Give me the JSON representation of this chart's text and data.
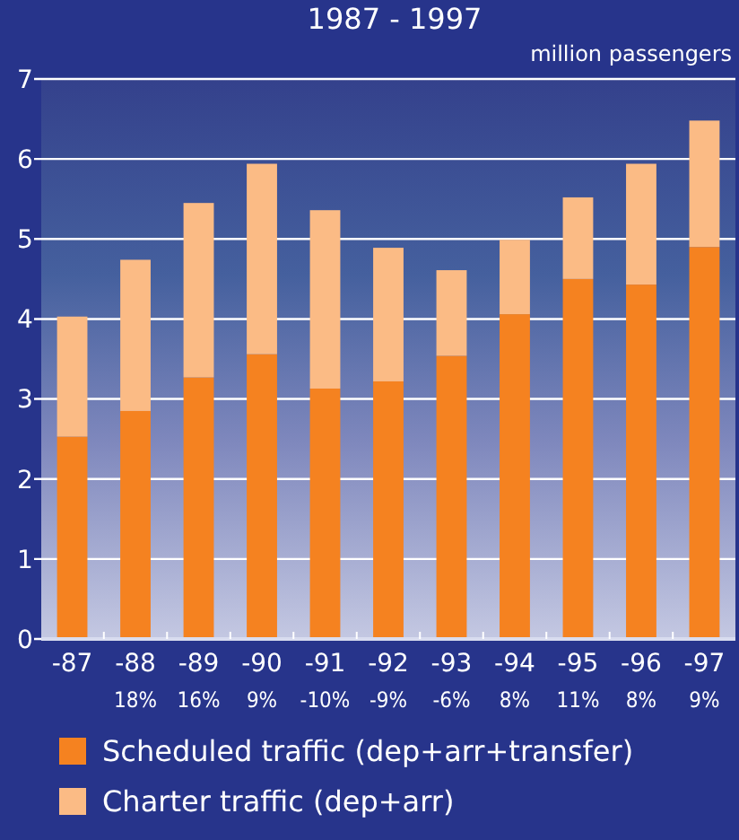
{
  "chart_data": {
    "type": "bar",
    "title": "1987 - 1997",
    "ylabel": "million passengers",
    "categories": [
      "-87",
      "-88",
      "-89",
      "-90",
      "-91",
      "-92",
      "-93",
      "-94",
      "-95",
      "-96",
      "-97"
    ],
    "stacked": true,
    "series": [
      {
        "name": "Scheduled traffic (dep+arr+transfer)",
        "color": "#f58220",
        "values": [
          2.53,
          2.85,
          3.27,
          3.56,
          3.13,
          3.22,
          3.54,
          4.06,
          4.5,
          4.43,
          4.9
        ]
      },
      {
        "name": "Charter traffic (dep+arr)",
        "color": "#fbbb85",
        "values": [
          1.5,
          1.89,
          2.18,
          2.38,
          2.23,
          1.67,
          1.07,
          0.93,
          1.02,
          1.51,
          1.58
        ]
      }
    ],
    "ylim": [
      0,
      7
    ],
    "yticks": [
      0,
      1,
      2,
      3,
      4,
      5,
      6,
      7
    ],
    "grid": "y",
    "legend": "bottom",
    "annotations": [
      "18%",
      "16%",
      "9%",
      "-10%",
      "-9%",
      "-6%",
      "8%",
      "11%",
      "8%",
      "9%"
    ]
  }
}
